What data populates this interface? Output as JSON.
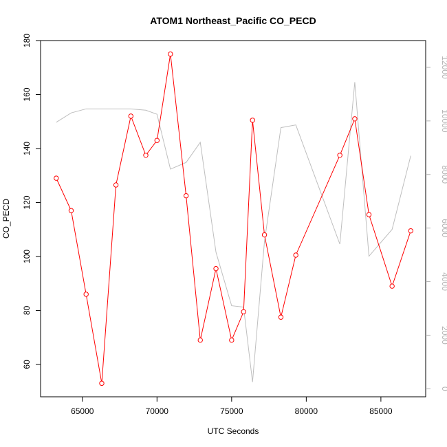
{
  "chart_data": {
    "type": "line",
    "title": "ATOM1 Northeast_Pacific CO_PECD",
    "xlabel": "UTC Seconds",
    "ylabel": "CO_PECD",
    "xlim": [
      62200,
      88000
    ],
    "ylim": [
      48,
      180
    ],
    "y2lim": [
      -300,
      13000
    ],
    "x_ticks": [
      65000,
      70000,
      75000,
      80000,
      85000
    ],
    "y_ticks": [
      60,
      80,
      100,
      120,
      140,
      160,
      180
    ],
    "y2_ticks": [
      0,
      2000,
      4000,
      6000,
      8000,
      10000,
      12000
    ],
    "colors": {
      "primary": "#ff0000",
      "secondary": "#bebebe",
      "axis_right": "#b3b3b3"
    },
    "series": [
      {
        "axis": "left",
        "style": "line-points",
        "color": "#ff0000",
        "x": [
          63250,
          64250,
          65250,
          66300,
          67250,
          68250,
          69250,
          70000,
          70900,
          71950,
          72900,
          73950,
          75000,
          75800,
          76400,
          77200,
          78300,
          79300,
          82250,
          83250,
          84200,
          85750,
          87000
        ],
        "y": [
          129,
          117,
          86,
          53,
          126.5,
          152,
          137.5,
          143,
          175,
          122.5,
          69,
          95.5,
          69,
          79.5,
          150.5,
          108,
          77.5,
          100.5,
          137.5,
          151,
          115.5,
          89,
          109.5
        ]
      },
      {
        "axis": "right",
        "style": "line",
        "color": "#bebebe",
        "x": [
          63250,
          64250,
          65250,
          66300,
          67250,
          68250,
          69250,
          70000,
          70900,
          71950,
          72900,
          73950,
          75000,
          75800,
          76400,
          77200,
          78300,
          79300,
          82250,
          83250,
          84200,
          85750,
          87000
        ],
        "y": [
          9950,
          10300,
          10450,
          10450,
          10450,
          10450,
          10400,
          10250,
          8200,
          8450,
          9200,
          5100,
          3100,
          3050,
          250,
          5500,
          9750,
          9850,
          5400,
          11450,
          4950,
          5950,
          8700
        ]
      }
    ]
  }
}
